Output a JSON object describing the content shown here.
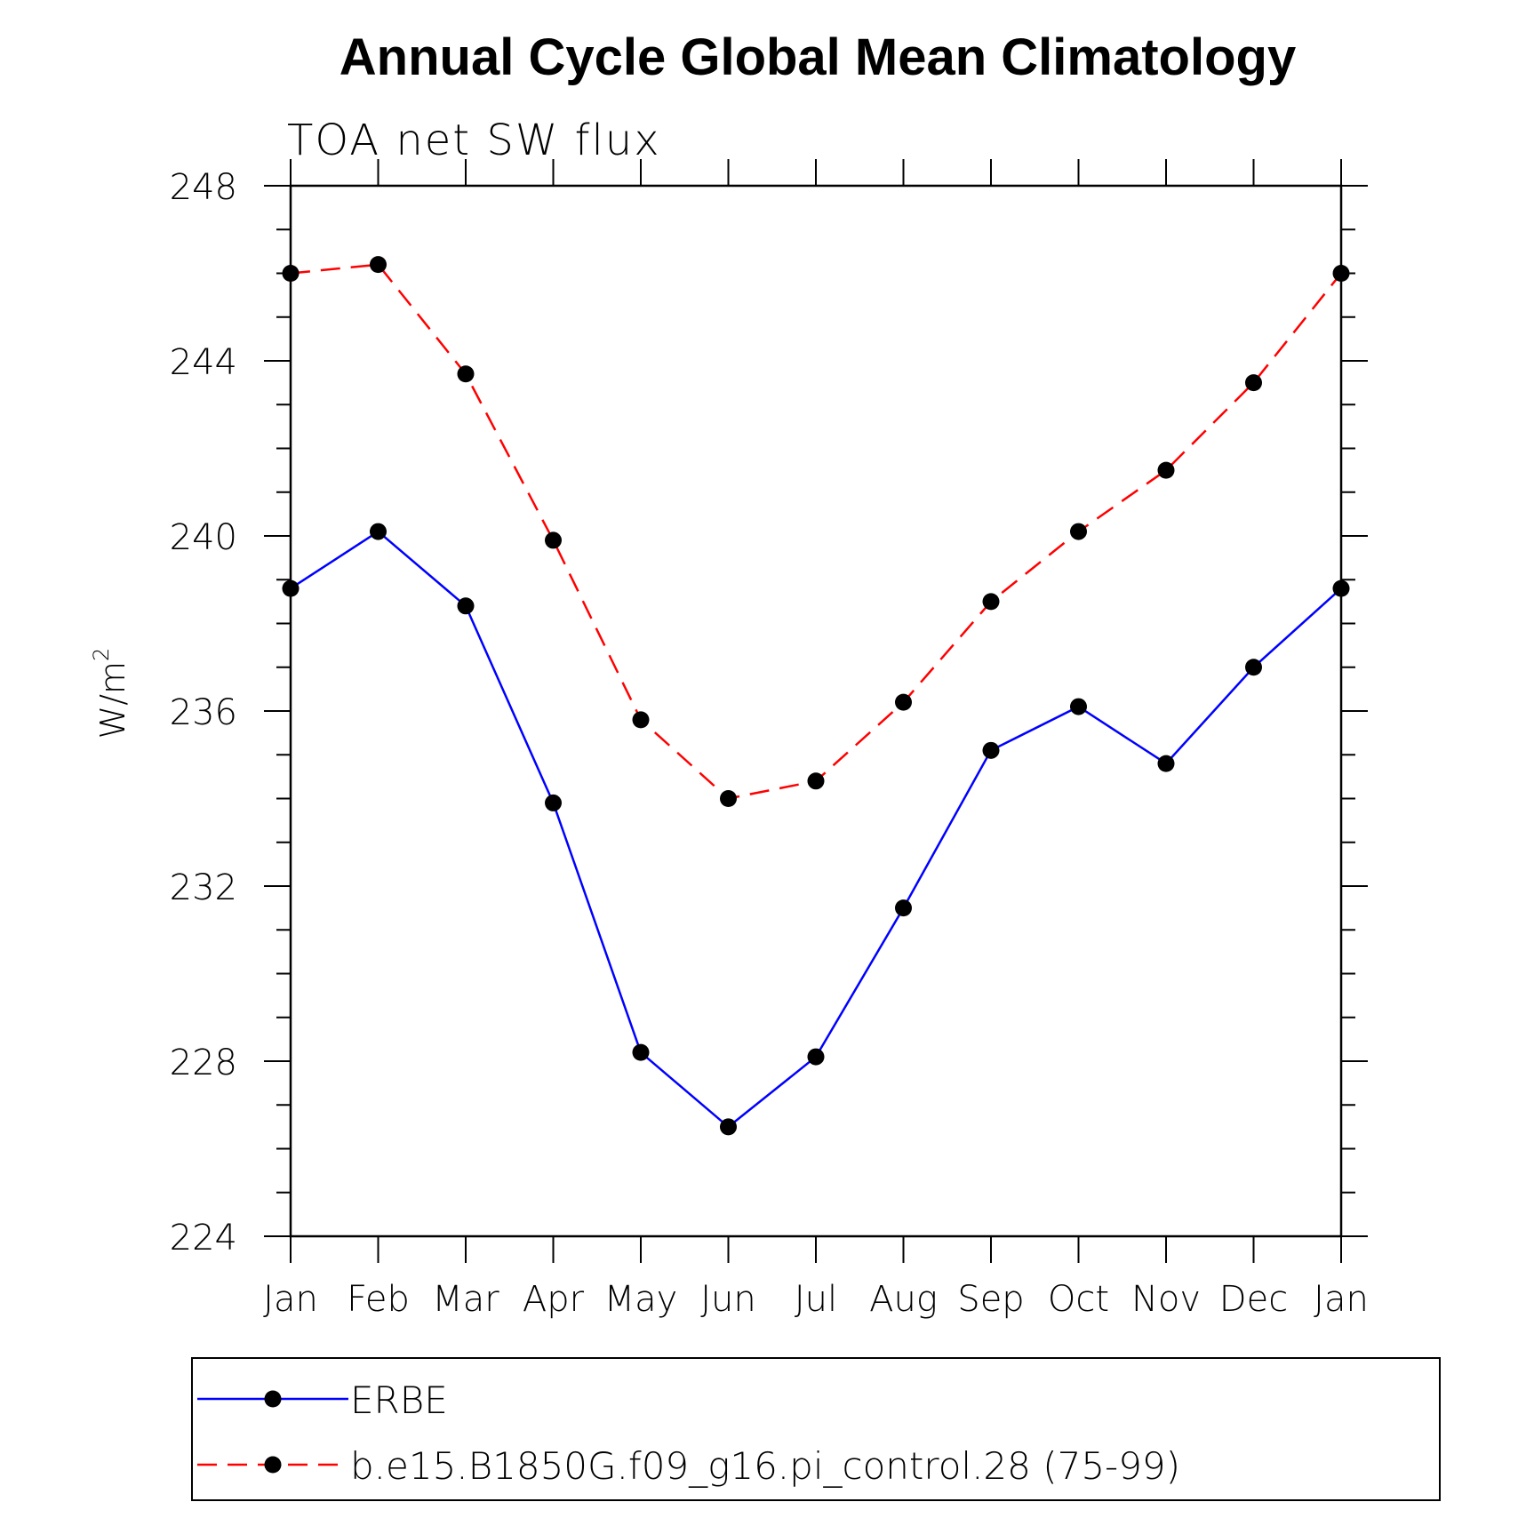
{
  "chart_data": {
    "type": "line",
    "title": "Annual Cycle Global Mean Climatology",
    "subtitle": "TOA net SW flux",
    "ylabel": "W/m",
    "ylabel_superscript": "2",
    "categories": [
      "Jan",
      "Feb",
      "Mar",
      "Apr",
      "May",
      "Jun",
      "Jul",
      "Aug",
      "Sep",
      "Oct",
      "Nov",
      "Dec",
      "Jan"
    ],
    "ylim": [
      224,
      248
    ],
    "yticks": [
      224,
      228,
      232,
      236,
      240,
      244,
      248
    ],
    "ytick_labels": [
      "224",
      "228",
      "232",
      "236",
      "240",
      "244",
      "248"
    ],
    "grid": false,
    "legend_position": "bottom",
    "series": [
      {
        "name": "ERBE",
        "color": "#0000ff",
        "dash": "solid",
        "marker": "filled-circle",
        "values": [
          238.8,
          240.1,
          238.4,
          233.9,
          228.2,
          226.5,
          228.1,
          231.5,
          235.1,
          236.1,
          234.8,
          237.0,
          238.8
        ]
      },
      {
        "name": "b.e15.B1850G.f09_g16.pi_control.28 (75-99)",
        "color": "#ff0000",
        "dash": "dashed",
        "marker": "filled-circle",
        "values": [
          246.0,
          246.2,
          243.7,
          239.9,
          235.8,
          234.0,
          234.4,
          236.2,
          238.5,
          240.1,
          241.5,
          243.5,
          246.0
        ]
      }
    ],
    "marker_color": "#000000"
  }
}
